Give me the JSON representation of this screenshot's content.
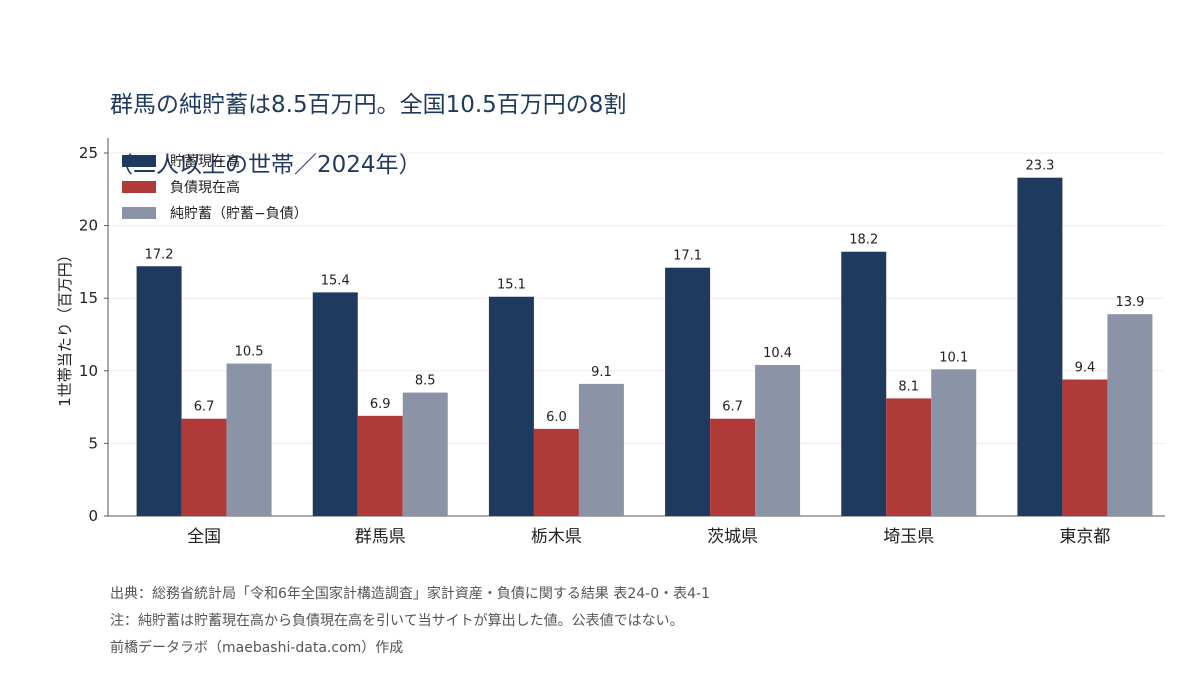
{
  "title": {
    "line1": "群馬の純貯蓄は8.5百万円。全国10.5百万円の8割",
    "line2": "（二人以上の世帯／2024年）"
  },
  "chart_data": {
    "type": "bar",
    "categories": [
      "全国",
      "群馬県",
      "栃木県",
      "茨城県",
      "埼玉県",
      "東京都"
    ],
    "series": [
      {
        "name": "貯蓄現在高",
        "color": "#1f3a5f",
        "values": [
          17.2,
          15.4,
          15.1,
          17.1,
          18.2,
          23.3
        ]
      },
      {
        "name": "負債現在高",
        "color": "#b03a3a",
        "values": [
          6.7,
          6.9,
          6.0,
          6.7,
          8.1,
          9.4
        ]
      },
      {
        "name": "純貯蓄（貯蓄−負債）",
        "color": "#8a94a6",
        "values": [
          10.5,
          8.5,
          9.1,
          10.4,
          10.1,
          13.9
        ]
      }
    ],
    "ylabel": "1世帯当たり（百万円）",
    "ylim": [
      0,
      25
    ],
    "yticks": [
      0,
      5,
      10,
      15,
      20,
      25
    ],
    "grid": true,
    "legend": "top-left"
  },
  "footer": {
    "source": "出典：総務省統計局「令和6年全国家計構造調査」家計資産・負債に関する結果 表24-0・表4-1",
    "note": "注：純貯蓄は貯蓄現在高から負債現在高を引いて当サイトが算出した値。公表値ではない。",
    "credit": "前橋データラボ（maebashi-data.com）作成"
  }
}
